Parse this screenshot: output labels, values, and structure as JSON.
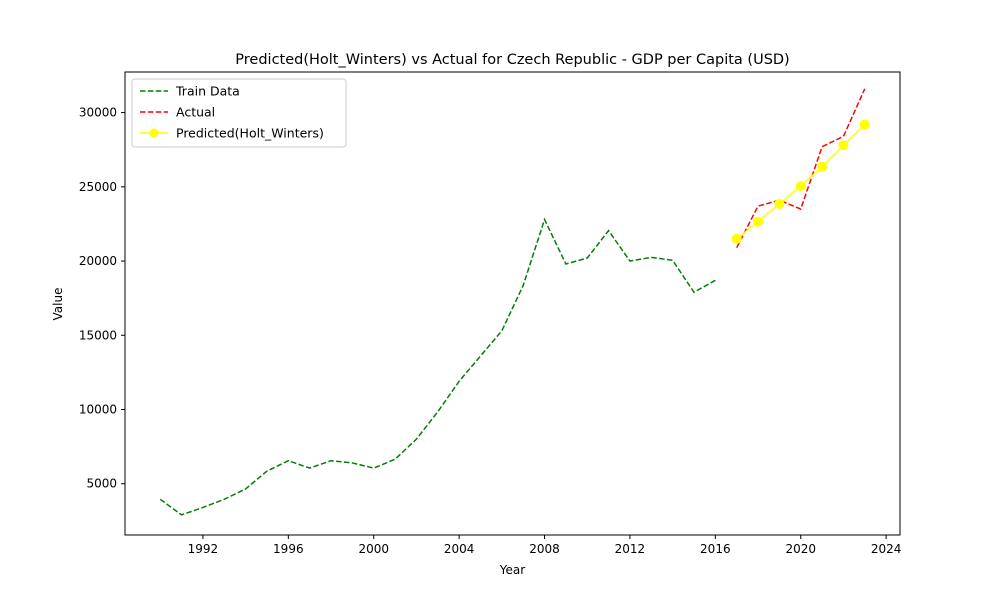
{
  "chart_data": {
    "type": "line",
    "title": "Predicted(Holt_Winters) vs Actual for Czech Republic - GDP per Capita (USD)",
    "xlabel": "Year",
    "ylabel": "Value",
    "xlim": [
      1988.35,
      2024.65
    ],
    "ylim": [
      1545,
      32735
    ],
    "xticks": [
      1992,
      1996,
      2000,
      2004,
      2008,
      2012,
      2016,
      2020,
      2024
    ],
    "yticks": [
      5000,
      10000,
      15000,
      20000,
      25000,
      30000
    ],
    "grid": false,
    "legend_position": "top-left",
    "series": [
      {
        "name": "Train Data",
        "color": "#008000",
        "style": "dashed",
        "marker": "none",
        "x": [
          1990,
          1991,
          1992,
          1993,
          1994,
          1995,
          1996,
          1997,
          1998,
          1999,
          2000,
          2001,
          2002,
          2003,
          2004,
          2005,
          2006,
          2007,
          2008,
          2009,
          2010,
          2011,
          2012,
          2013,
          2014,
          2015,
          2016
        ],
        "y": [
          3950,
          2900,
          3400,
          3950,
          4650,
          5850,
          6550,
          6050,
          6550,
          6400,
          6050,
          6650,
          8000,
          9850,
          11900,
          13600,
          15300,
          18350,
          22800,
          19800,
          20200,
          22050,
          20000,
          20250,
          20050,
          17900,
          18700
        ]
      },
      {
        "name": "Actual",
        "color": "#ff0000",
        "style": "dashed",
        "marker": "none",
        "x": [
          2017,
          2018,
          2019,
          2020,
          2021,
          2022,
          2023
        ],
        "y": [
          20900,
          23700,
          24100,
          23500,
          27700,
          28400,
          31600
        ]
      },
      {
        "name": "Predicted(Holt_Winters)",
        "color": "#ffff00",
        "style": "solid",
        "marker": "circle",
        "x": [
          2017,
          2018,
          2019,
          2020,
          2021,
          2022,
          2023
        ],
        "y": [
          21500,
          22650,
          23850,
          25050,
          26350,
          27800,
          29200
        ]
      }
    ]
  }
}
